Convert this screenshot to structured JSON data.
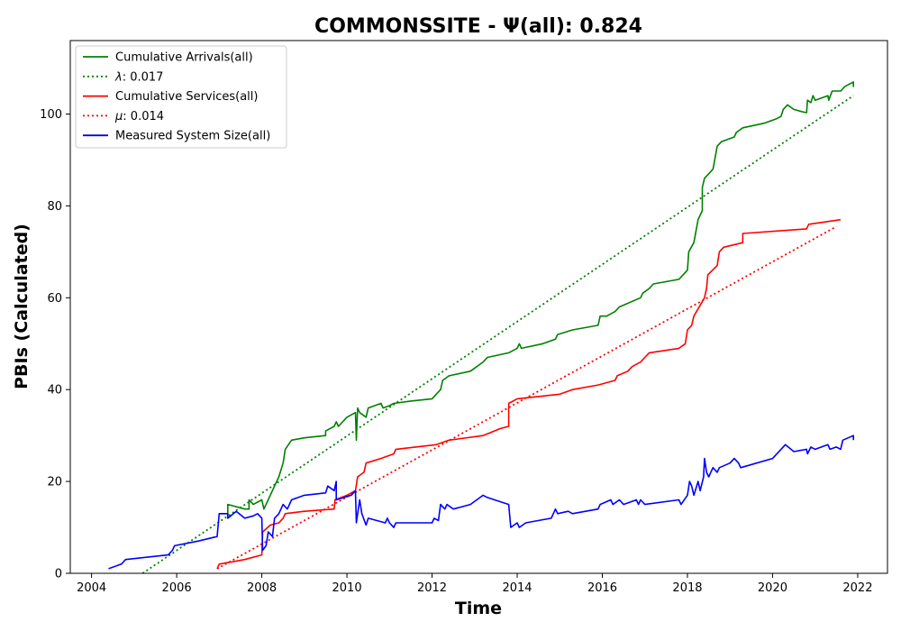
{
  "chart_data": {
    "type": "line",
    "title": "COMMONSSITE -  Ψ(all): 0.824",
    "xlabel": "Time",
    "ylabel": "PBIs (Calculated)",
    "xlim": [
      2003.5,
      2022.7
    ],
    "ylim": [
      0,
      116
    ],
    "x_ticks": [
      2004,
      2006,
      2008,
      2010,
      2012,
      2014,
      2016,
      2018,
      2020,
      2022
    ],
    "y_ticks": [
      0,
      20,
      40,
      60,
      80,
      100
    ],
    "x_tick_labels": [
      "2004",
      "2006",
      "2008",
      "2010",
      "2012",
      "2014",
      "2016",
      "2018",
      "2020",
      "2022"
    ],
    "y_tick_labels": [
      "0",
      "20",
      "40",
      "60",
      "80",
      "100"
    ],
    "grid": false,
    "legend_position": "top-left",
    "series": [
      {
        "name": "Cumulative Arrivals(all)",
        "color": "#008000",
        "style": "solid",
        "points": [
          [
            2007.0,
            13
          ],
          [
            2007.2,
            13
          ],
          [
            2007.2,
            15
          ],
          [
            2007.6,
            14
          ],
          [
            2007.7,
            14
          ],
          [
            2007.7,
            16
          ],
          [
            2007.8,
            15
          ],
          [
            2008.0,
            16
          ],
          [
            2008.05,
            14
          ],
          [
            2008.2,
            17
          ],
          [
            2008.3,
            19
          ],
          [
            2008.4,
            21
          ],
          [
            2008.5,
            24
          ],
          [
            2008.55,
            27
          ],
          [
            2008.7,
            29
          ],
          [
            2009.0,
            29.5
          ],
          [
            2009.5,
            30
          ],
          [
            2009.5,
            31
          ],
          [
            2009.7,
            32
          ],
          [
            2009.75,
            33
          ],
          [
            2009.8,
            32
          ],
          [
            2010.0,
            34
          ],
          [
            2010.2,
            35
          ],
          [
            2010.22,
            29
          ],
          [
            2010.25,
            36
          ],
          [
            2010.3,
            35
          ],
          [
            2010.45,
            34
          ],
          [
            2010.5,
            36
          ],
          [
            2010.8,
            37
          ],
          [
            2010.85,
            36
          ],
          [
            2011.0,
            36.5
          ],
          [
            2011.1,
            37
          ],
          [
            2011.5,
            37.5
          ],
          [
            2012.0,
            38
          ],
          [
            2012.2,
            40
          ],
          [
            2012.25,
            42
          ],
          [
            2012.4,
            43
          ],
          [
            2012.9,
            44
          ],
          [
            2013.2,
            46
          ],
          [
            2013.3,
            47
          ],
          [
            2013.8,
            48
          ],
          [
            2014.0,
            49
          ],
          [
            2014.05,
            50
          ],
          [
            2014.1,
            49
          ],
          [
            2014.6,
            50
          ],
          [
            2014.9,
            51
          ],
          [
            2014.95,
            52
          ],
          [
            2015.3,
            53
          ],
          [
            2015.9,
            54
          ],
          [
            2015.95,
            56
          ],
          [
            2016.1,
            56
          ],
          [
            2016.3,
            57
          ],
          [
            2016.4,
            58
          ],
          [
            2016.9,
            60
          ],
          [
            2016.95,
            61
          ],
          [
            2017.1,
            62
          ],
          [
            2017.2,
            63
          ],
          [
            2017.8,
            64
          ],
          [
            2018.0,
            66
          ],
          [
            2018.03,
            70
          ],
          [
            2018.15,
            72
          ],
          [
            2018.25,
            77
          ],
          [
            2018.35,
            79
          ],
          [
            2018.35,
            84
          ],
          [
            2018.4,
            86
          ],
          [
            2018.5,
            87
          ],
          [
            2018.6,
            88
          ],
          [
            2018.62,
            89
          ],
          [
            2018.7,
            93
          ],
          [
            2018.8,
            94
          ],
          [
            2019.1,
            95
          ],
          [
            2019.15,
            96
          ],
          [
            2019.3,
            97
          ],
          [
            2019.8,
            98
          ],
          [
            2020.1,
            99
          ],
          [
            2020.2,
            99.5
          ],
          [
            2020.25,
            101
          ],
          [
            2020.35,
            102
          ],
          [
            2020.5,
            101
          ],
          [
            2020.7,
            100.5
          ],
          [
            2020.8,
            100.3
          ],
          [
            2020.82,
            103
          ],
          [
            2020.9,
            102.5
          ],
          [
            2020.95,
            104
          ],
          [
            2021.0,
            103
          ],
          [
            2021.3,
            104
          ],
          [
            2021.32,
            103
          ],
          [
            2021.4,
            105
          ],
          [
            2021.6,
            105
          ],
          [
            2021.7,
            106
          ],
          [
            2021.9,
            107
          ],
          [
            2021.9,
            106
          ],
          [
            2021.9,
            107
          ]
        ]
      },
      {
        "name": "λ: 0.017",
        "color": "#008000",
        "style": "dotted",
        "points": [
          [
            2005.2,
            0
          ],
          [
            2021.9,
            104
          ]
        ]
      },
      {
        "name": "Cumulative Services(all)",
        "color": "#ff0000",
        "style": "solid",
        "points": [
          [
            2006.95,
            1
          ],
          [
            2007.0,
            2
          ],
          [
            2007.6,
            3
          ],
          [
            2008.0,
            4
          ],
          [
            2008.02,
            9
          ],
          [
            2008.2,
            10.5
          ],
          [
            2008.4,
            11
          ],
          [
            2008.5,
            12
          ],
          [
            2008.55,
            13
          ],
          [
            2009.0,
            13.5
          ],
          [
            2009.7,
            14
          ],
          [
            2009.72,
            16
          ],
          [
            2010.0,
            17
          ],
          [
            2010.2,
            18
          ],
          [
            2010.25,
            21
          ],
          [
            2010.4,
            22
          ],
          [
            2010.45,
            24
          ],
          [
            2010.8,
            25
          ],
          [
            2011.1,
            26
          ],
          [
            2011.15,
            27
          ],
          [
            2012.1,
            28
          ],
          [
            2012.4,
            29
          ],
          [
            2013.2,
            30
          ],
          [
            2013.6,
            31.5
          ],
          [
            2013.8,
            32
          ],
          [
            2013.8,
            37
          ],
          [
            2014.0,
            38
          ],
          [
            2015.0,
            39
          ],
          [
            2015.3,
            40
          ],
          [
            2015.9,
            41
          ],
          [
            2016.3,
            42
          ],
          [
            2016.35,
            43
          ],
          [
            2016.6,
            44
          ],
          [
            2016.7,
            45
          ],
          [
            2016.9,
            46
          ],
          [
            2017.0,
            47
          ],
          [
            2017.1,
            48
          ],
          [
            2017.8,
            49
          ],
          [
            2017.95,
            50
          ],
          [
            2018.0,
            53
          ],
          [
            2018.1,
            54
          ],
          [
            2018.15,
            56
          ],
          [
            2018.4,
            60
          ],
          [
            2018.45,
            62
          ],
          [
            2018.48,
            65
          ],
          [
            2018.7,
            67
          ],
          [
            2018.75,
            70
          ],
          [
            2018.85,
            71
          ],
          [
            2019.3,
            72
          ],
          [
            2019.3,
            74
          ],
          [
            2020.8,
            75
          ],
          [
            2020.85,
            76
          ],
          [
            2021.6,
            77
          ]
        ]
      },
      {
        "name": "μ: 0.014",
        "color": "#ff0000",
        "style": "dotted",
        "points": [
          [
            2006.95,
            1
          ],
          [
            2021.5,
            75.5
          ]
        ]
      },
      {
        "name": "Measured System Size(all)",
        "color": "#0000ff",
        "style": "solid",
        "points": [
          [
            2004.4,
            1
          ],
          [
            2004.7,
            2
          ],
          [
            2004.8,
            3
          ],
          [
            2005.8,
            4
          ],
          [
            2005.9,
            5
          ],
          [
            2005.95,
            6
          ],
          [
            2006.5,
            7
          ],
          [
            2006.95,
            8
          ],
          [
            2007.0,
            13
          ],
          [
            2007.2,
            13
          ],
          [
            2007.2,
            12
          ],
          [
            2007.4,
            13.5
          ],
          [
            2007.6,
            12
          ],
          [
            2007.8,
            12.5
          ],
          [
            2007.9,
            13
          ],
          [
            2008.0,
            12
          ],
          [
            2008.02,
            5
          ],
          [
            2008.1,
            6
          ],
          [
            2008.15,
            9
          ],
          [
            2008.25,
            8
          ],
          [
            2008.3,
            12
          ],
          [
            2008.4,
            13
          ],
          [
            2008.5,
            15
          ],
          [
            2008.6,
            14
          ],
          [
            2008.7,
            16
          ],
          [
            2009.0,
            17
          ],
          [
            2009.5,
            17.5
          ],
          [
            2009.55,
            19
          ],
          [
            2009.7,
            18
          ],
          [
            2009.75,
            20
          ],
          [
            2009.75,
            16
          ],
          [
            2010.1,
            17
          ],
          [
            2010.2,
            18
          ],
          [
            2010.22,
            11
          ],
          [
            2010.3,
            16
          ],
          [
            2010.35,
            13
          ],
          [
            2010.45,
            10.5
          ],
          [
            2010.5,
            12
          ],
          [
            2010.9,
            11
          ],
          [
            2010.95,
            12
          ],
          [
            2011.0,
            11
          ],
          [
            2011.1,
            10
          ],
          [
            2011.15,
            11
          ],
          [
            2012.0,
            11
          ],
          [
            2012.05,
            12
          ],
          [
            2012.15,
            11.5
          ],
          [
            2012.2,
            15
          ],
          [
            2012.3,
            14
          ],
          [
            2012.35,
            15
          ],
          [
            2012.5,
            14
          ],
          [
            2012.9,
            15
          ],
          [
            2013.2,
            17
          ],
          [
            2013.3,
            16.5
          ],
          [
            2013.8,
            15
          ],
          [
            2013.85,
            10
          ],
          [
            2014.0,
            11
          ],
          [
            2014.05,
            10
          ],
          [
            2014.2,
            11
          ],
          [
            2014.8,
            12
          ],
          [
            2014.9,
            14
          ],
          [
            2014.95,
            13
          ],
          [
            2015.2,
            13.5
          ],
          [
            2015.3,
            13
          ],
          [
            2015.9,
            14
          ],
          [
            2015.95,
            15
          ],
          [
            2016.2,
            16
          ],
          [
            2016.25,
            15
          ],
          [
            2016.4,
            16
          ],
          [
            2016.5,
            15
          ],
          [
            2016.8,
            16
          ],
          [
            2016.85,
            15
          ],
          [
            2016.9,
            16
          ],
          [
            2017.0,
            15
          ],
          [
            2017.8,
            16
          ],
          [
            2017.85,
            15
          ],
          [
            2018.0,
            17
          ],
          [
            2018.05,
            20
          ],
          [
            2018.1,
            19
          ],
          [
            2018.15,
            17
          ],
          [
            2018.25,
            20
          ],
          [
            2018.3,
            18
          ],
          [
            2018.38,
            21
          ],
          [
            2018.4,
            25
          ],
          [
            2018.45,
            22
          ],
          [
            2018.5,
            21
          ],
          [
            2018.6,
            23
          ],
          [
            2018.7,
            22
          ],
          [
            2018.75,
            23
          ],
          [
            2019.0,
            24
          ],
          [
            2019.1,
            25
          ],
          [
            2019.2,
            24
          ],
          [
            2019.25,
            23
          ],
          [
            2020.0,
            25
          ],
          [
            2020.2,
            27
          ],
          [
            2020.3,
            28
          ],
          [
            2020.5,
            26.5
          ],
          [
            2020.8,
            27
          ],
          [
            2020.82,
            26
          ],
          [
            2020.9,
            27.5
          ],
          [
            2021.0,
            27
          ],
          [
            2021.3,
            28
          ],
          [
            2021.35,
            27
          ],
          [
            2021.5,
            27.5
          ],
          [
            2021.6,
            27
          ],
          [
            2021.65,
            29
          ],
          [
            2021.9,
            30
          ],
          [
            2021.9,
            29
          ]
        ]
      }
    ],
    "legend": [
      {
        "label": "Cumulative Arrivals(all)",
        "color": "#008000",
        "style": "solid"
      },
      {
        "label": ": 0.017",
        "symbol": "λ",
        "color": "#008000",
        "style": "dotted"
      },
      {
        "label": "Cumulative Services(all)",
        "color": "#ff0000",
        "style": "solid"
      },
      {
        "label": ": 0.014",
        "symbol": "μ",
        "color": "#ff0000",
        "style": "dotted"
      },
      {
        "label": "Measured System Size(all)",
        "color": "#0000ff",
        "style": "solid"
      }
    ]
  }
}
